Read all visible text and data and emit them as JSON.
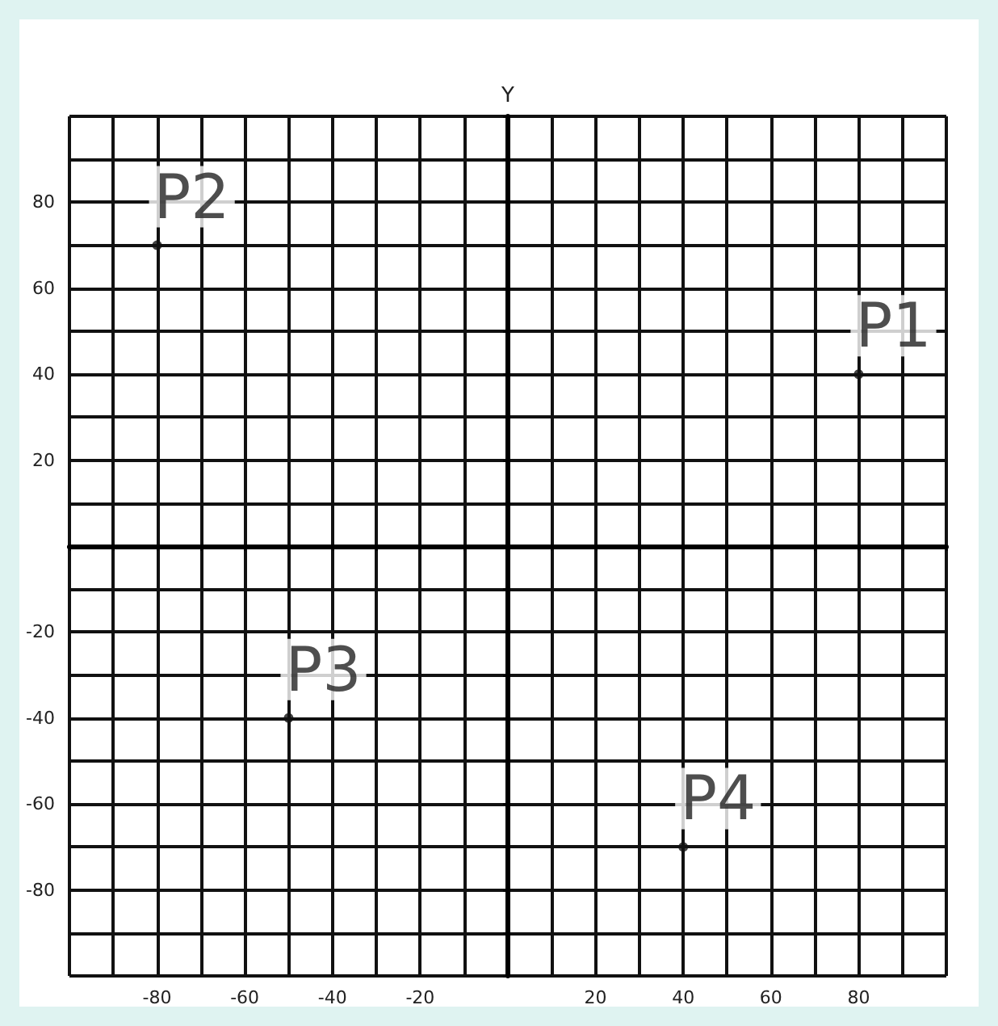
{
  "chart_data": {
    "type": "scatter",
    "ylabel": "Y",
    "x": [
      80,
      -80,
      -50,
      40
    ],
    "series": [
      {
        "color": "#111111",
        "values": [
          40,
          70,
          -40,
          -70
        ],
        "value_labels": [
          "P1",
          "P2",
          "P3",
          "P4"
        ]
      }
    ],
    "xlim": [
      -100,
      100
    ],
    "ylim": [
      -100,
      100
    ],
    "xticks": [
      {
        "value": -100,
        "label": null
      },
      {
        "value": -90,
        "label": null
      },
      -80,
      {
        "value": -70,
        "label": null
      },
      -60,
      {
        "value": -50,
        "label": null
      },
      -40,
      {
        "value": -30,
        "label": null
      },
      -20,
      {
        "value": -10,
        "label": null
      },
      {
        "value": 0,
        "label": null
      },
      {
        "value": 10,
        "label": null
      },
      20,
      {
        "value": 30,
        "label": null
      },
      40,
      {
        "value": 50,
        "label": null
      },
      60,
      {
        "value": 70,
        "label": null
      },
      80,
      {
        "value": 90,
        "label": null
      },
      {
        "value": 100,
        "label": null
      }
    ],
    "yticks": [
      {
        "value": -100,
        "label": null
      },
      {
        "value": -90,
        "label": null
      },
      -80,
      {
        "value": -70,
        "label": null
      },
      -60,
      {
        "value": -50,
        "label": null
      },
      -40,
      {
        "value": -30,
        "label": null
      },
      -20,
      {
        "value": -10,
        "label": null
      },
      {
        "value": 0,
        "label": null
      },
      {
        "value": 10,
        "label": null
      },
      20,
      {
        "value": 30,
        "label": null
      },
      40,
      {
        "value": 50,
        "label": null
      },
      60,
      {
        "value": 70,
        "label": null
      },
      80,
      {
        "value": 90,
        "label": null
      },
      {
        "value": 100,
        "label": null
      }
    ],
    "grid": true,
    "marker": "circle"
  }
}
